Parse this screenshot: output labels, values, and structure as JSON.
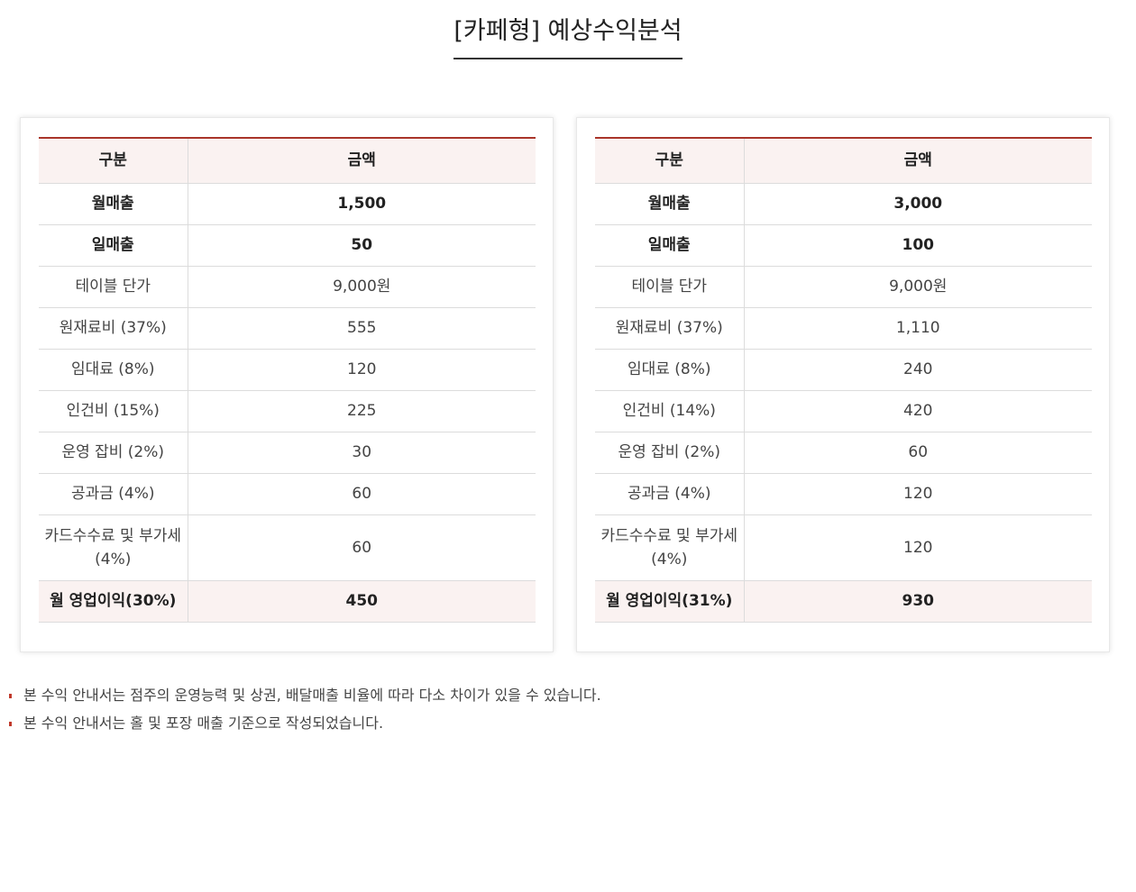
{
  "title": "[카페형] 예상수익분석",
  "tables": [
    {
      "header": {
        "label": "구분",
        "value": "금액"
      },
      "rows": [
        {
          "label": "월매출",
          "value": "1,500"
        },
        {
          "label": "일매출",
          "value": "50"
        },
        {
          "label": "테이블 단가",
          "value": "9,000원"
        },
        {
          "label": "원재료비 (37%)",
          "value": "555"
        },
        {
          "label": "임대료 (8%)",
          "value": "120"
        },
        {
          "label": "인건비 (15%)",
          "value": "225"
        },
        {
          "label": "운영 잡비 (2%)",
          "value": "30"
        },
        {
          "label": "공과금 (4%)",
          "value": "60"
        },
        {
          "label": "카드수수료 및 부가세 (4%)",
          "value": "60"
        }
      ],
      "total": {
        "label": "월 영업이익(30%)",
        "value": "450"
      }
    },
    {
      "header": {
        "label": "구분",
        "value": "금액"
      },
      "rows": [
        {
          "label": "월매출",
          "value": "3,000"
        },
        {
          "label": "일매출",
          "value": "100"
        },
        {
          "label": "테이블 단가",
          "value": "9,000원"
        },
        {
          "label": "원재료비 (37%)",
          "value": "1,110"
        },
        {
          "label": "임대료 (8%)",
          "value": "240"
        },
        {
          "label": "인건비 (14%)",
          "value": "420"
        },
        {
          "label": "운영 잡비 (2%)",
          "value": "60"
        },
        {
          "label": "공과금 (4%)",
          "value": "120"
        },
        {
          "label": "카드수수료 및 부가세 (4%)",
          "value": "120"
        }
      ],
      "total": {
        "label": "월 영업이익(31%)",
        "value": "930"
      }
    }
  ],
  "notes": [
    "본 수익 안내서는 점주의 운영능력 및 상권, 배달매출 비율에 따라 다소 차이가 있을 수 있습니다.",
    "본 수익 안내서는 홀 및 포장 매출 기준으로 작성되었습니다."
  ],
  "colors": {
    "accent": "#a9352a",
    "header_bg": "#faf2f1",
    "bullet": "#c0392b"
  }
}
